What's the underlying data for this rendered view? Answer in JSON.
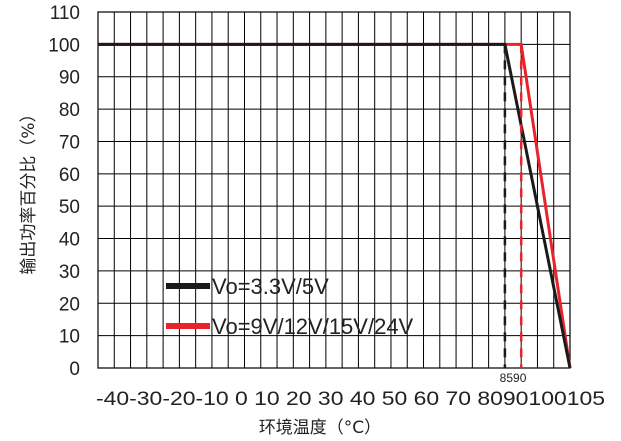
{
  "chart_data": {
    "type": "line",
    "title": "",
    "xlabel": "环境温度（°C）",
    "ylabel": "输出功率百分比（%）",
    "xlim": [
      -40,
      105
    ],
    "ylim": [
      0,
      110
    ],
    "x_ticks": [
      "-40",
      "-30",
      "-20",
      "-10",
      "0",
      "10",
      "20",
      "30",
      "40",
      "50",
      "60",
      "70",
      "80",
      "90",
      "100",
      "105"
    ],
    "y_ticks": [
      0,
      10,
      20,
      30,
      40,
      50,
      60,
      70,
      80,
      90,
      100,
      110
    ],
    "grid": true,
    "legend_position": "bottom-left",
    "series": [
      {
        "name": "Vo=3.3V/5V",
        "color": "#1a1a1a",
        "x": [
          -40,
          85,
          105
        ],
        "y": [
          100,
          100,
          0
        ]
      },
      {
        "name": "Vo=9V/12V/15V/24V",
        "color": "#e8232a",
        "x": [
          -40,
          90,
          105
        ],
        "y": [
          100,
          100,
          0
        ]
      }
    ],
    "annotations": [
      {
        "x": 85,
        "text": "85",
        "color": "#1a1a1a"
      },
      {
        "x": 90,
        "text": "90",
        "color": "#e8232a"
      }
    ]
  }
}
